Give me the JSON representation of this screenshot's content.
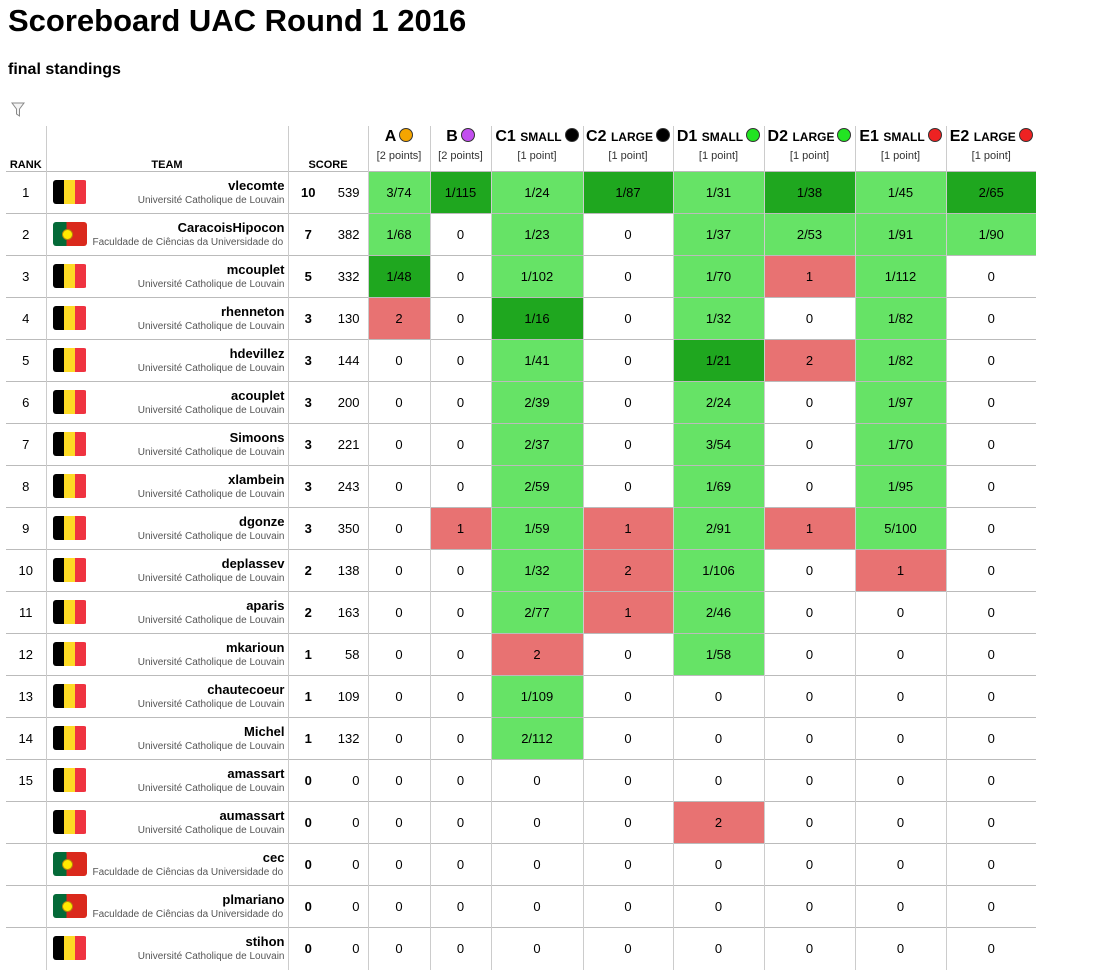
{
  "page": {
    "title": "Scoreboard UAC Round 1 2016",
    "subtitle": "final standings"
  },
  "icons": {
    "filter": "filter-icon"
  },
  "headers": {
    "rank": "RANK",
    "team": "TEAM",
    "score": "SCORE"
  },
  "colors": {
    "first_solve": "#1fa71f",
    "solved": "#66e366",
    "wrong": "#e87272"
  },
  "problems": [
    {
      "id": "A",
      "size": "",
      "color": "#f5a500",
      "points": "[2 points]"
    },
    {
      "id": "B",
      "size": "",
      "color": "#c24fef",
      "points": "[2 points]"
    },
    {
      "id": "C1",
      "size": "small",
      "color": "#000000",
      "points": "[1 point]"
    },
    {
      "id": "C2",
      "size": "large",
      "color": "#000000",
      "points": "[1 point]"
    },
    {
      "id": "D1",
      "size": "small",
      "color": "#22e422",
      "points": "[1 point]"
    },
    {
      "id": "D2",
      "size": "large",
      "color": "#22e422",
      "points": "[1 point]"
    },
    {
      "id": "E1",
      "size": "small",
      "color": "#ee2222",
      "points": "[1 point]"
    },
    {
      "id": "E2",
      "size": "large",
      "color": "#ee2222",
      "points": "[1 point]"
    }
  ],
  "teams": [
    {
      "rank": "1",
      "flag": "be",
      "name": "vlecomte",
      "affiliation": "Université Catholique de Louvain",
      "solved": "10",
      "time": "539",
      "cells": [
        [
          "3/74",
          "ok"
        ],
        [
          "1/115",
          "first"
        ],
        [
          "1/24",
          "ok"
        ],
        [
          "1/87",
          "first"
        ],
        [
          "1/31",
          "ok"
        ],
        [
          "1/38",
          "first"
        ],
        [
          "1/45",
          "ok"
        ],
        [
          "2/65",
          "first"
        ]
      ]
    },
    {
      "rank": "2",
      "flag": "pt",
      "name": "CaracoisHipocon",
      "affiliation": "Faculdade de Ciências da Universidade do Porto",
      "solved": "7",
      "time": "382",
      "cells": [
        [
          "1/68",
          "ok"
        ],
        [
          "0",
          ""
        ],
        [
          "1/23",
          "ok"
        ],
        [
          "0",
          ""
        ],
        [
          "1/37",
          "ok"
        ],
        [
          "2/53",
          "ok"
        ],
        [
          "1/91",
          "ok"
        ],
        [
          "1/90",
          "ok"
        ]
      ]
    },
    {
      "rank": "3",
      "flag": "be",
      "name": "mcouplet",
      "affiliation": "Université Catholique de Louvain",
      "solved": "5",
      "time": "332",
      "cells": [
        [
          "1/48",
          "first"
        ],
        [
          "0",
          ""
        ],
        [
          "1/102",
          "ok"
        ],
        [
          "0",
          ""
        ],
        [
          "1/70",
          "ok"
        ],
        [
          "1",
          "wrong"
        ],
        [
          "1/112",
          "ok"
        ],
        [
          "0",
          ""
        ]
      ]
    },
    {
      "rank": "4",
      "flag": "be",
      "name": "rhenneton",
      "affiliation": "Université Catholique de Louvain",
      "solved": "3",
      "time": "130",
      "cells": [
        [
          "2",
          "wrong"
        ],
        [
          "0",
          ""
        ],
        [
          "1/16",
          "first"
        ],
        [
          "0",
          ""
        ],
        [
          "1/32",
          "ok"
        ],
        [
          "0",
          ""
        ],
        [
          "1/82",
          "ok"
        ],
        [
          "0",
          ""
        ]
      ]
    },
    {
      "rank": "5",
      "flag": "be",
      "name": "hdevillez",
      "affiliation": "Université Catholique de Louvain",
      "solved": "3",
      "time": "144",
      "cells": [
        [
          "0",
          ""
        ],
        [
          "0",
          ""
        ],
        [
          "1/41",
          "ok"
        ],
        [
          "0",
          ""
        ],
        [
          "1/21",
          "first"
        ],
        [
          "2",
          "wrong"
        ],
        [
          "1/82",
          "ok"
        ],
        [
          "0",
          ""
        ]
      ]
    },
    {
      "rank": "6",
      "flag": "be",
      "name": "acouplet",
      "affiliation": "Université Catholique de Louvain",
      "solved": "3",
      "time": "200",
      "cells": [
        [
          "0",
          ""
        ],
        [
          "0",
          ""
        ],
        [
          "2/39",
          "ok"
        ],
        [
          "0",
          ""
        ],
        [
          "2/24",
          "ok"
        ],
        [
          "0",
          ""
        ],
        [
          "1/97",
          "ok"
        ],
        [
          "0",
          ""
        ]
      ]
    },
    {
      "rank": "7",
      "flag": "be",
      "name": "Simoons",
      "affiliation": "Université Catholique de Louvain",
      "solved": "3",
      "time": "221",
      "cells": [
        [
          "0",
          ""
        ],
        [
          "0",
          ""
        ],
        [
          "2/37",
          "ok"
        ],
        [
          "0",
          ""
        ],
        [
          "3/54",
          "ok"
        ],
        [
          "0",
          ""
        ],
        [
          "1/70",
          "ok"
        ],
        [
          "0",
          ""
        ]
      ]
    },
    {
      "rank": "8",
      "flag": "be",
      "name": "xlambein",
      "affiliation": "Université Catholique de Louvain",
      "solved": "3",
      "time": "243",
      "cells": [
        [
          "0",
          ""
        ],
        [
          "0",
          ""
        ],
        [
          "2/59",
          "ok"
        ],
        [
          "0",
          ""
        ],
        [
          "1/69",
          "ok"
        ],
        [
          "0",
          ""
        ],
        [
          "1/95",
          "ok"
        ],
        [
          "0",
          ""
        ]
      ]
    },
    {
      "rank": "9",
      "flag": "be",
      "name": "dgonze",
      "affiliation": "Université Catholique de Louvain",
      "solved": "3",
      "time": "350",
      "cells": [
        [
          "0",
          ""
        ],
        [
          "1",
          "wrong"
        ],
        [
          "1/59",
          "ok"
        ],
        [
          "1",
          "wrong"
        ],
        [
          "2/91",
          "ok"
        ],
        [
          "1",
          "wrong"
        ],
        [
          "5/100",
          "ok"
        ],
        [
          "0",
          ""
        ]
      ]
    },
    {
      "rank": "10",
      "flag": "be",
      "name": "deplassev",
      "affiliation": "Université Catholique de Louvain",
      "solved": "2",
      "time": "138",
      "cells": [
        [
          "0",
          ""
        ],
        [
          "0",
          ""
        ],
        [
          "1/32",
          "ok"
        ],
        [
          "2",
          "wrong"
        ],
        [
          "1/106",
          "ok"
        ],
        [
          "0",
          ""
        ],
        [
          "1",
          "wrong"
        ],
        [
          "0",
          ""
        ]
      ]
    },
    {
      "rank": "11",
      "flag": "be",
      "name": "aparis",
      "affiliation": "Université Catholique de Louvain",
      "solved": "2",
      "time": "163",
      "cells": [
        [
          "0",
          ""
        ],
        [
          "0",
          ""
        ],
        [
          "2/77",
          "ok"
        ],
        [
          "1",
          "wrong"
        ],
        [
          "2/46",
          "ok"
        ],
        [
          "0",
          ""
        ],
        [
          "0",
          ""
        ],
        [
          "0",
          ""
        ]
      ]
    },
    {
      "rank": "12",
      "flag": "be",
      "name": "mkarioun",
      "affiliation": "Université Catholique de Louvain",
      "solved": "1",
      "time": "58",
      "cells": [
        [
          "0",
          ""
        ],
        [
          "0",
          ""
        ],
        [
          "2",
          "wrong"
        ],
        [
          "0",
          ""
        ],
        [
          "1/58",
          "ok"
        ],
        [
          "0",
          ""
        ],
        [
          "0",
          ""
        ],
        [
          "0",
          ""
        ]
      ]
    },
    {
      "rank": "13",
      "flag": "be",
      "name": "chautecoeur",
      "affiliation": "Université Catholique de Louvain",
      "solved": "1",
      "time": "109",
      "cells": [
        [
          "0",
          ""
        ],
        [
          "0",
          ""
        ],
        [
          "1/109",
          "ok"
        ],
        [
          "0",
          ""
        ],
        [
          "0",
          ""
        ],
        [
          "0",
          ""
        ],
        [
          "0",
          ""
        ],
        [
          "0",
          ""
        ]
      ]
    },
    {
      "rank": "14",
      "flag": "be",
      "name": "Michel",
      "affiliation": "Université Catholique de Louvain",
      "solved": "1",
      "time": "132",
      "cells": [
        [
          "0",
          ""
        ],
        [
          "0",
          ""
        ],
        [
          "2/112",
          "ok"
        ],
        [
          "0",
          ""
        ],
        [
          "0",
          ""
        ],
        [
          "0",
          ""
        ],
        [
          "0",
          ""
        ],
        [
          "0",
          ""
        ]
      ]
    },
    {
      "rank": "15",
      "flag": "be",
      "name": "amassart",
      "affiliation": "Université Catholique de Louvain",
      "solved": "0",
      "time": "0",
      "cells": [
        [
          "0",
          ""
        ],
        [
          "0",
          ""
        ],
        [
          "0",
          ""
        ],
        [
          "0",
          ""
        ],
        [
          "0",
          ""
        ],
        [
          "0",
          ""
        ],
        [
          "0",
          ""
        ],
        [
          "0",
          ""
        ]
      ]
    },
    {
      "rank": "",
      "flag": "be",
      "name": "aumassart",
      "affiliation": "Université Catholique de Louvain",
      "solved": "0",
      "time": "0",
      "cells": [
        [
          "0",
          ""
        ],
        [
          "0",
          ""
        ],
        [
          "0",
          ""
        ],
        [
          "0",
          ""
        ],
        [
          "2",
          "wrong"
        ],
        [
          "0",
          ""
        ],
        [
          "0",
          ""
        ],
        [
          "0",
          ""
        ]
      ]
    },
    {
      "rank": "",
      "flag": "pt",
      "name": "cec",
      "affiliation": "Faculdade de Ciências da Universidade do Porto",
      "solved": "0",
      "time": "0",
      "cells": [
        [
          "0",
          ""
        ],
        [
          "0",
          ""
        ],
        [
          "0",
          ""
        ],
        [
          "0",
          ""
        ],
        [
          "0",
          ""
        ],
        [
          "0",
          ""
        ],
        [
          "0",
          ""
        ],
        [
          "0",
          ""
        ]
      ]
    },
    {
      "rank": "",
      "flag": "pt",
      "name": "plmariano",
      "affiliation": "Faculdade de Ciências da Universidade do Porto",
      "solved": "0",
      "time": "0",
      "cells": [
        [
          "0",
          ""
        ],
        [
          "0",
          ""
        ],
        [
          "0",
          ""
        ],
        [
          "0",
          ""
        ],
        [
          "0",
          ""
        ],
        [
          "0",
          ""
        ],
        [
          "0",
          ""
        ],
        [
          "0",
          ""
        ]
      ]
    },
    {
      "rank": "",
      "flag": "be",
      "name": "stihon",
      "affiliation": "Université Catholique de Louvain",
      "solved": "0",
      "time": "0",
      "cells": [
        [
          "0",
          ""
        ],
        [
          "0",
          ""
        ],
        [
          "0",
          ""
        ],
        [
          "0",
          ""
        ],
        [
          "0",
          ""
        ],
        [
          "0",
          ""
        ],
        [
          "0",
          ""
        ],
        [
          "0",
          ""
        ]
      ]
    }
  ]
}
